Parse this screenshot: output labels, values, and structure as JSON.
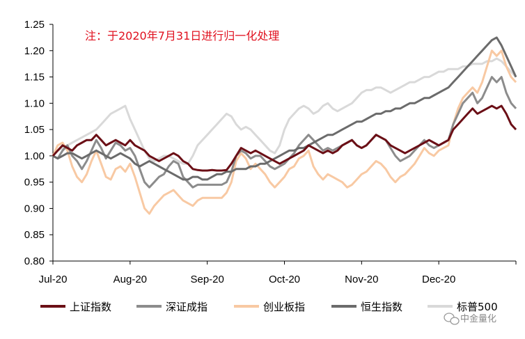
{
  "chart_data": {
    "type": "line",
    "annotation": "注：于2020年7月31日进行归一化处理",
    "y_ticks": [
      "0.80",
      "0.85",
      "0.90",
      "0.95",
      "1.00",
      "1.05",
      "1.10",
      "1.15",
      "1.20",
      "1.25"
    ],
    "ylim": [
      0.8,
      1.25
    ],
    "x_ticks": [
      "Jul-20",
      "Aug-20",
      "Sep-20",
      "Oct-20",
      "Nov-20",
      "Dec-20"
    ],
    "grid": false,
    "legend_position": "bottom",
    "series": [
      {
        "name": "上证指数",
        "color": "#6b0f16",
        "values": [
          1.0,
          1.01,
          1.02,
          1.015,
          1.01,
          1.02,
          1.025,
          1.03,
          1.03,
          1.04,
          1.03,
          1.02,
          1.025,
          1.03,
          1.025,
          1.02,
          1.03,
          1.02,
          1.015,
          1.01,
          1.0,
          0.995,
          0.99,
          0.995,
          1.0,
          1.005,
          1.0,
          0.99,
          0.985,
          0.975,
          0.973,
          0.972,
          0.972,
          0.973,
          0.972,
          0.972,
          0.973,
          0.985,
          1.0,
          1.015,
          1.01,
          1.005,
          1.01,
          1.005,
          1.0,
          0.995,
          0.99,
          0.985,
          0.99,
          0.995,
          1.0,
          1.005,
          1.01,
          1.02,
          1.015,
          1.01,
          1.005,
          1.01,
          1.005,
          1.01,
          1.02,
          1.025,
          1.03,
          1.02,
          1.015,
          1.02,
          1.03,
          1.04,
          1.035,
          1.03,
          1.02,
          1.015,
          1.01,
          1.005,
          1.01,
          1.015,
          1.02,
          1.025,
          1.03,
          1.025,
          1.02,
          1.025,
          1.03,
          1.05,
          1.06,
          1.07,
          1.08,
          1.09,
          1.08,
          1.085,
          1.09,
          1.095,
          1.09,
          1.095,
          1.08,
          1.06,
          1.05
        ]
      },
      {
        "name": "深证成指",
        "color": "#8c8c8c",
        "values": [
          1.0,
          0.995,
          1.01,
          1.02,
          1.0,
          0.99,
          0.975,
          0.99,
          1.01,
          1.03,
          1.015,
          0.995,
          1.01,
          1.025,
          1.02,
          1.01,
          1.015,
          1.0,
          0.975,
          0.95,
          0.94,
          0.95,
          0.96,
          0.965,
          0.98,
          0.99,
          0.985,
          0.96,
          0.95,
          0.94,
          0.945,
          0.945,
          0.945,
          0.945,
          0.945,
          0.945,
          0.95,
          0.97,
          1.0,
          1.01,
          1.005,
          0.995,
          1.0,
          1.0,
          0.99,
          0.98,
          0.975,
          0.98,
          0.985,
          0.995,
          1.005,
          1.02,
          1.03,
          1.04,
          1.03,
          1.02,
          1.01,
          1.015,
          1.01,
          1.015,
          1.02,
          1.025,
          1.03,
          1.02,
          1.015,
          1.02,
          1.03,
          1.04,
          1.035,
          1.03,
          1.015,
          1.0,
          0.99,
          0.995,
          1.0,
          1.01,
          1.02,
          1.03,
          1.02,
          1.015,
          1.02,
          1.025,
          1.03,
          1.06,
          1.08,
          1.1,
          1.11,
          1.12,
          1.1,
          1.11,
          1.13,
          1.15,
          1.14,
          1.15,
          1.12,
          1.1,
          1.09
        ]
      },
      {
        "name": "创业板指",
        "color": "#f8c9a3",
        "values": [
          1.0,
          1.02,
          1.025,
          1.01,
          0.98,
          0.96,
          0.95,
          0.965,
          0.99,
          1.01,
          0.985,
          0.96,
          0.955,
          0.975,
          0.98,
          0.97,
          0.985,
          0.96,
          0.93,
          0.9,
          0.89,
          0.905,
          0.915,
          0.925,
          0.93,
          0.935,
          0.925,
          0.915,
          0.91,
          0.905,
          0.915,
          0.92,
          0.92,
          0.92,
          0.92,
          0.92,
          0.93,
          0.95,
          0.99,
          1.005,
          0.995,
          0.975,
          0.985,
          0.975,
          0.965,
          0.95,
          0.94,
          0.95,
          0.96,
          0.975,
          0.98,
          0.995,
          1.0,
          1.01,
          0.98,
          0.965,
          0.955,
          0.965,
          0.96,
          0.955,
          0.95,
          0.94,
          0.945,
          0.955,
          0.965,
          0.97,
          0.98,
          0.99,
          0.985,
          0.975,
          0.96,
          0.95,
          0.96,
          0.965,
          0.975,
          0.985,
          1.0,
          1.015,
          1.005,
          1.0,
          1.01,
          1.015,
          1.02,
          1.06,
          1.09,
          1.11,
          1.12,
          1.13,
          1.12,
          1.14,
          1.17,
          1.2,
          1.19,
          1.2,
          1.17,
          1.15,
          1.14
        ]
      },
      {
        "name": "恒生指数",
        "color": "#6b6b6b",
        "values": [
          1.0,
          0.995,
          1.0,
          1.005,
          1.005,
          1.0,
          0.995,
          1.0,
          1.005,
          1.01,
          1.005,
          1.0,
          0.995,
          1.0,
          1.005,
          1.0,
          0.995,
          0.985,
          0.98,
          0.985,
          0.99,
          0.985,
          0.98,
          0.975,
          0.97,
          0.965,
          0.96,
          0.955,
          0.955,
          0.96,
          0.96,
          0.955,
          0.955,
          0.96,
          0.965,
          0.965,
          0.97,
          0.97,
          0.975,
          0.975,
          0.975,
          0.98,
          0.98,
          0.985,
          0.985,
          0.99,
          0.995,
          1.0,
          1.005,
          1.01,
          1.01,
          1.015,
          1.015,
          1.02,
          1.025,
          1.03,
          1.035,
          1.04,
          1.04,
          1.045,
          1.05,
          1.055,
          1.06,
          1.065,
          1.065,
          1.07,
          1.075,
          1.08,
          1.08,
          1.085,
          1.085,
          1.09,
          1.09,
          1.095,
          1.1,
          1.1,
          1.105,
          1.11,
          1.11,
          1.115,
          1.12,
          1.125,
          1.13,
          1.14,
          1.15,
          1.16,
          1.17,
          1.18,
          1.19,
          1.2,
          1.21,
          1.22,
          1.225,
          1.21,
          1.19,
          1.17,
          1.15
        ]
      },
      {
        "name": "标普500",
        "color": "#d9d9d9",
        "values": [
          1.0,
          1.01,
          1.015,
          1.02,
          1.025,
          1.03,
          1.035,
          1.04,
          1.045,
          1.05,
          1.06,
          1.07,
          1.08,
          1.085,
          1.09,
          1.095,
          1.07,
          1.05,
          1.03,
          1.01,
          0.995,
          0.99,
          0.995,
          1.0,
          1.0,
          0.995,
          0.99,
          0.985,
          0.985,
          1.0,
          1.02,
          1.03,
          1.04,
          1.05,
          1.06,
          1.07,
          1.08,
          1.075,
          1.06,
          1.05,
          1.055,
          1.05,
          1.04,
          1.03,
          1.02,
          1.01,
          1.005,
          1.02,
          1.05,
          1.07,
          1.08,
          1.09,
          1.095,
          1.09,
          1.08,
          1.085,
          1.095,
          1.1,
          1.09,
          1.085,
          1.09,
          1.095,
          1.1,
          1.11,
          1.12,
          1.125,
          1.125,
          1.13,
          1.13,
          1.125,
          1.12,
          1.125,
          1.13,
          1.135,
          1.14,
          1.14,
          1.145,
          1.15,
          1.15,
          1.155,
          1.16,
          1.16,
          1.165,
          1.165,
          1.165,
          1.17,
          1.17,
          1.175,
          1.175,
          1.175,
          1.18,
          1.18,
          1.185,
          1.18,
          1.17,
          1.16,
          1.15
        ]
      }
    ]
  },
  "watermark": {
    "text": "中金量化",
    "icon": "wechat-icon"
  }
}
